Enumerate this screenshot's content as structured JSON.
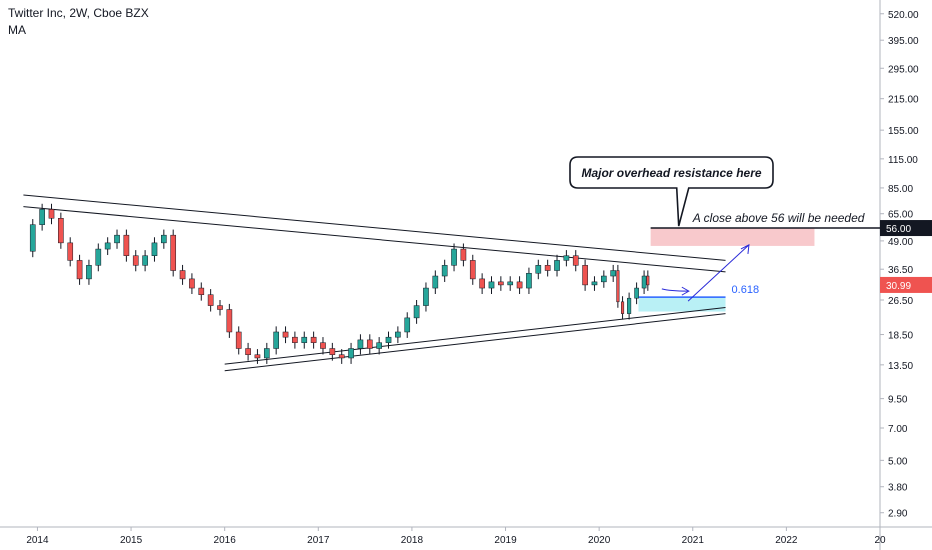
{
  "header": {
    "title": "Twitter Inc, 2W, Cboe BZX",
    "indicator": "MA"
  },
  "colors": {
    "up": "#26a69a",
    "down": "#ef5350",
    "resistance_zone": "#f8c9cc",
    "support_zone": "#b9f0f5",
    "annotation_line": "#2a2ad8",
    "fib_label": "#2962ff",
    "price_tag": "#ef5350",
    "level_tag": "#131722"
  },
  "chart_data": {
    "type": "candlestick",
    "title": "Twitter Inc, 2W, Cboe BZX",
    "y_scale": "log",
    "ylim": [
      2.5,
      600
    ],
    "x_range": [
      2013.6,
      2023.0
    ],
    "y_ticks": [
      "520.00",
      "395.00",
      "295.00",
      "215.00",
      "155.00",
      "115.00",
      "85.00",
      "65.00",
      "49.00",
      "36.50",
      "26.50",
      "18.50",
      "13.50",
      "9.50",
      "7.00",
      "5.00",
      "3.80",
      "2.90"
    ],
    "x_ticks": [
      "2014",
      "2015",
      "2016",
      "2017",
      "2018",
      "2019",
      "2020",
      "2021",
      "2022",
      "20"
    ],
    "price_series": [
      [
        2013.85,
        44
      ],
      [
        2013.95,
        58
      ],
      [
        2014.05,
        68
      ],
      [
        2014.15,
        62
      ],
      [
        2014.25,
        48
      ],
      [
        2014.35,
        40
      ],
      [
        2014.45,
        33
      ],
      [
        2014.55,
        38
      ],
      [
        2014.65,
        45
      ],
      [
        2014.75,
        48
      ],
      [
        2014.85,
        52
      ],
      [
        2014.95,
        42
      ],
      [
        2015.05,
        38
      ],
      [
        2015.15,
        42
      ],
      [
        2015.25,
        48
      ],
      [
        2015.35,
        52
      ],
      [
        2015.45,
        36
      ],
      [
        2015.55,
        33
      ],
      [
        2015.65,
        30
      ],
      [
        2015.75,
        28
      ],
      [
        2015.85,
        25
      ],
      [
        2015.95,
        24
      ],
      [
        2016.05,
        19
      ],
      [
        2016.15,
        16
      ],
      [
        2016.25,
        15
      ],
      [
        2016.35,
        14.5
      ],
      [
        2016.45,
        16
      ],
      [
        2016.55,
        19
      ],
      [
        2016.65,
        18
      ],
      [
        2016.75,
        17
      ],
      [
        2016.85,
        18
      ],
      [
        2016.95,
        17
      ],
      [
        2017.05,
        16
      ],
      [
        2017.15,
        15
      ],
      [
        2017.25,
        14.5
      ],
      [
        2017.35,
        16
      ],
      [
        2017.45,
        17.5
      ],
      [
        2017.55,
        16
      ],
      [
        2017.65,
        17
      ],
      [
        2017.75,
        18
      ],
      [
        2017.85,
        19
      ],
      [
        2017.95,
        22
      ],
      [
        2018.05,
        25
      ],
      [
        2018.15,
        30
      ],
      [
        2018.25,
        34
      ],
      [
        2018.35,
        38
      ],
      [
        2018.45,
        45
      ],
      [
        2018.55,
        40
      ],
      [
        2018.65,
        33
      ],
      [
        2018.75,
        30
      ],
      [
        2018.85,
        32
      ],
      [
        2018.95,
        31
      ],
      [
        2019.05,
        32
      ],
      [
        2019.15,
        30
      ],
      [
        2019.25,
        35
      ],
      [
        2019.35,
        38
      ],
      [
        2019.45,
        36
      ],
      [
        2019.55,
        40
      ],
      [
        2019.65,
        42
      ],
      [
        2019.75,
        38
      ],
      [
        2019.85,
        31
      ],
      [
        2019.95,
        32
      ],
      [
        2020.05,
        34
      ],
      [
        2020.15,
        36
      ],
      [
        2020.2,
        26
      ],
      [
        2020.25,
        23
      ],
      [
        2020.32,
        27
      ],
      [
        2020.4,
        30
      ],
      [
        2020.48,
        34
      ],
      [
        2020.52,
        31
      ]
    ],
    "current_price": "30.99",
    "trendlines": [
      {
        "name": "upper-channel-top",
        "from": [
          2013.85,
          79
        ],
        "to": [
          2021.35,
          40
        ]
      },
      {
        "name": "upper-channel-bottom",
        "from": [
          2013.85,
          70
        ],
        "to": [
          2021.35,
          35.5
        ]
      },
      {
        "name": "lower-channel-top",
        "from": [
          2016.0,
          13.6
        ],
        "to": [
          2021.35,
          24.5
        ]
      },
      {
        "name": "lower-channel-bottom",
        "from": [
          2016.0,
          12.7
        ],
        "to": [
          2021.35,
          23
        ]
      }
    ],
    "resistance_zone": {
      "x": [
        2020.55,
        2022.3
      ],
      "y": [
        46.5,
        56
      ]
    },
    "support_zone": {
      "x": [
        2020.42,
        2021.35
      ],
      "y": [
        23.5,
        27.3
      ]
    },
    "resistance_level": {
      "value": "56.00",
      "x_from": 2020.55,
      "x_to": 2022.85
    },
    "fib_level": {
      "label": "0.618",
      "value": 27.3
    },
    "annotations": {
      "callout": "Major overhead resistance here",
      "note": "A close above 56 will be needed"
    }
  }
}
